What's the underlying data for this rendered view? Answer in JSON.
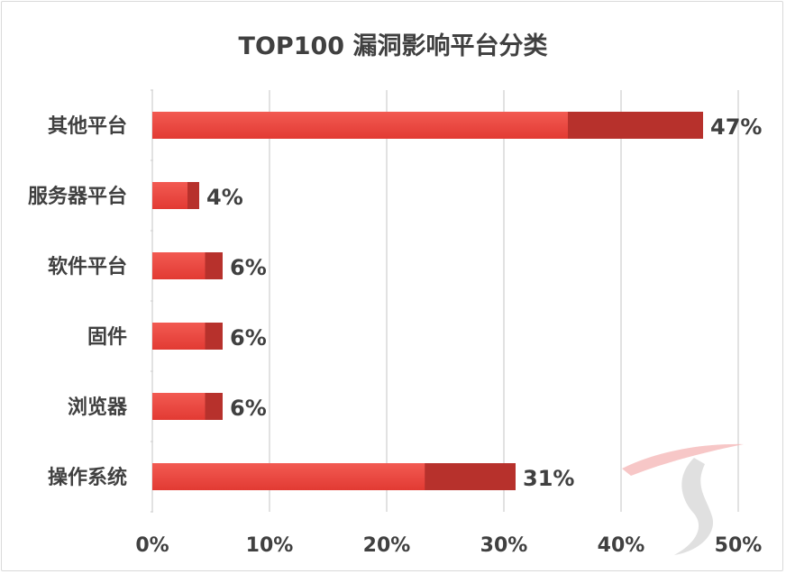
{
  "chart_data": {
    "type": "bar",
    "orientation": "horizontal",
    "title": "TOP100 漏洞影响平台分类",
    "categories": [
      "其他平台",
      "服务器平台",
      "软件平台",
      "固件",
      "浏览器",
      "操作系统"
    ],
    "values": [
      47,
      4,
      6,
      6,
      6,
      31
    ],
    "value_labels": [
      "47%",
      "4%",
      "6%",
      "6%",
      "6%",
      "31%"
    ],
    "xlim": [
      0,
      50
    ],
    "xticks": [
      0,
      10,
      20,
      30,
      40,
      50
    ],
    "xtick_labels": [
      "0%",
      "10%",
      "20%",
      "30%",
      "40%",
      "50%"
    ],
    "xlabel": "",
    "ylabel": "",
    "grid": "vertical",
    "legend": "none",
    "colors": {
      "bar_main": "#e8403a",
      "bar_end": "#b7312c",
      "grid": "#d9d9d9",
      "text": "#404040",
      "watermark": "#d9d9d9"
    }
  }
}
